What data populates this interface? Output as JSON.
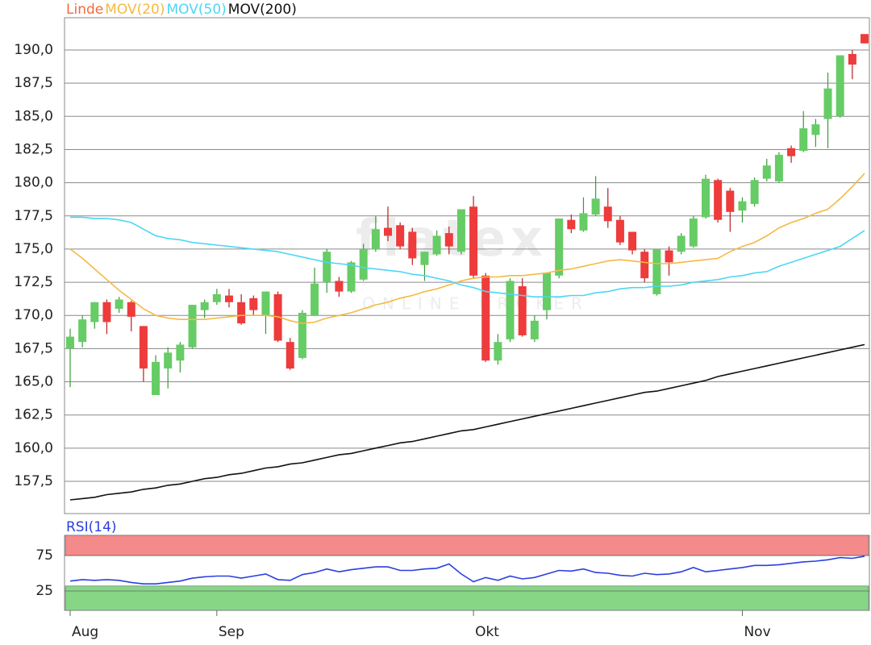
{
  "chart_data": [
    {
      "type": "candlestick",
      "watermark": {
        "logo": "flatex",
        "tagline": "ONLINE BROKER"
      },
      "categories": [
        "Aug",
        null,
        null,
        null,
        null,
        null,
        null,
        null,
        null,
        null,
        null,
        null,
        "Sep",
        null,
        null,
        null,
        null,
        null,
        null,
        null,
        null,
        null,
        null,
        null,
        null,
        null,
        null,
        null,
        null,
        null,
        null,
        null,
        null,
        "Okt",
        null,
        null,
        null,
        null,
        null,
        null,
        null,
        null,
        null,
        null,
        null,
        null,
        null,
        null,
        null,
        null,
        null,
        null,
        null,
        null,
        null,
        "Nov",
        null,
        null,
        null,
        null,
        null,
        null,
        null,
        null,
        null,
        null
      ],
      "ylim": [
        155.07,
        192.43
      ],
      "yticks": [
        {
          "value": 157.5,
          "label": "157,5"
        },
        {
          "value": 160,
          "label": "160,0"
        },
        {
          "value": 162.5,
          "label": "162,5"
        },
        {
          "value": 165,
          "label": "165,0"
        },
        {
          "value": 167.5,
          "label": "167,5"
        },
        {
          "value": 170,
          "label": "170,0"
        },
        {
          "value": 172.5,
          "label": "172,5"
        },
        {
          "value": 175,
          "label": "175,0"
        },
        {
          "value": 177.5,
          "label": "177,5"
        },
        {
          "value": 180,
          "label": "180,0"
        },
        {
          "value": 182.5,
          "label": "182,5"
        },
        {
          "value": 185,
          "label": "185,0"
        },
        {
          "value": 187.5,
          "label": "187,5"
        },
        {
          "value": 190,
          "label": "190,0"
        }
      ],
      "grid": true,
      "series": [
        {
          "name": "Linde",
          "color": "#f26b3a",
          "up_color": "#66cc66",
          "down_color": "#ee3b3b",
          "open": [
            167.5,
            168,
            169.5,
            171,
            170.5,
            171,
            169.2,
            164,
            166,
            166.6,
            167.6,
            170.4,
            171,
            171.5,
            171,
            171.3,
            170,
            171.6,
            168,
            166.8,
            170,
            172.5,
            172.6,
            171.8,
            172.7,
            175,
            176.6,
            176.8,
            176.3,
            173.8,
            174.6,
            176.2,
            174.8,
            178.2,
            173,
            166.6,
            168.2,
            172.2,
            168.2,
            170.4,
            173,
            177.2,
            176.4,
            177.6,
            178.2,
            177.2,
            176.3,
            174.8,
            171.6,
            174.9,
            174.8,
            175.2,
            177.4,
            180.2,
            179.4,
            177.9,
            178.4,
            180.3,
            180.1,
            182.6,
            182.4,
            183.6,
            184.8,
            185,
            189.7,
            191.2
          ],
          "high": [
            169,
            170,
            171,
            171.2,
            171.4,
            171.1,
            169.2,
            167,
            167.6,
            168,
            170.8,
            171.2,
            172,
            172,
            171.6,
            171.5,
            171.8,
            171.8,
            168.3,
            170.4,
            173.6,
            175,
            172.9,
            174.1,
            175.4,
            177.5,
            178.2,
            177,
            176.6,
            174.8,
            176.4,
            176.7,
            178,
            179,
            173.2,
            168.6,
            172.8,
            172.8,
            170,
            173.2,
            177.3,
            177.6,
            178.9,
            180.5,
            179.6,
            177.5,
            176.3,
            175,
            175,
            175.2,
            176.2,
            177.5,
            180.6,
            180.3,
            179.6,
            178.9,
            180.4,
            181.8,
            182.3,
            182.8,
            185.4,
            184.8,
            188.3,
            189.6,
            190,
            191.2
          ],
          "low": [
            164.6,
            167.6,
            169,
            168.6,
            170.2,
            168.8,
            165,
            164,
            164.5,
            165.7,
            167.5,
            169.8,
            170.8,
            170.6,
            169.3,
            170,
            168.6,
            168,
            165.9,
            166.7,
            170,
            171.7,
            171.4,
            171.7,
            172.6,
            174.8,
            175.6,
            175,
            173.8,
            172.6,
            174.5,
            174.6,
            174.6,
            172.8,
            166.5,
            166.3,
            168,
            168.4,
            168,
            169.7,
            172.8,
            176.2,
            176.3,
            177.5,
            176.6,
            175.3,
            174.6,
            172.5,
            171.5,
            173,
            174.6,
            175.1,
            177.3,
            177,
            176.3,
            177,
            178.2,
            180.1,
            180,
            181.5,
            182.3,
            182.7,
            182.6,
            184.9,
            187.8,
            190.5
          ],
          "close": [
            168.4,
            169.7,
            171,
            169.5,
            171.2,
            169.9,
            166,
            166.5,
            167.2,
            167.8,
            170.8,
            171,
            171.6,
            171,
            169.4,
            170.4,
            171.8,
            168.1,
            166,
            170.2,
            172.4,
            174.8,
            171.8,
            174,
            175,
            176.5,
            176,
            175.2,
            174.3,
            174.8,
            176,
            175.2,
            178,
            173,
            166.6,
            168,
            172.6,
            168.5,
            169.6,
            173.2,
            177.3,
            176.5,
            177.7,
            178.8,
            177.1,
            175.5,
            174.9,
            172.8,
            175,
            174,
            176,
            177.3,
            180.3,
            177.2,
            177.8,
            178.6,
            180.2,
            181.3,
            182.1,
            182,
            184.1,
            184.4,
            187.1,
            189.6,
            188.9,
            190.5
          ]
        },
        {
          "name": "MOV(20)",
          "color": "#f5b942",
          "values": [
            175.0,
            174.3,
            173.5,
            172.7,
            171.9,
            171.2,
            170.5,
            170.0,
            169.8,
            169.7,
            169.7,
            169.7,
            169.8,
            169.9,
            170.0,
            170.0,
            170.0,
            169.9,
            169.6,
            169.4,
            169.5,
            169.8,
            170.0,
            170.2,
            170.5,
            170.8,
            171.0,
            171.3,
            171.5,
            171.8,
            172.0,
            172.3,
            172.6,
            172.8,
            172.9,
            172.9,
            173.0,
            173.0,
            173.1,
            173.2,
            173.4,
            173.5,
            173.7,
            173.9,
            174.1,
            174.2,
            174.1,
            174.0,
            173.9,
            173.9,
            174.0,
            174.1,
            174.2,
            174.3,
            174.8,
            175.2,
            175.5,
            176.0,
            176.6,
            177.0,
            177.3,
            177.7,
            178.0,
            178.8,
            179.7,
            180.7
          ]
        },
        {
          "name": "MOV(50)",
          "color": "#4dd6f5",
          "values": [
            177.4,
            177.4,
            177.3,
            177.3,
            177.2,
            177.0,
            176.5,
            176.0,
            175.8,
            175.7,
            175.5,
            175.4,
            175.3,
            175.2,
            175.1,
            175.0,
            174.9,
            174.8,
            174.6,
            174.4,
            174.2,
            174.0,
            173.9,
            173.8,
            173.6,
            173.5,
            173.4,
            173.3,
            173.1,
            173.0,
            172.8,
            172.6,
            172.3,
            172.1,
            171.8,
            171.7,
            171.6,
            171.5,
            171.4,
            171.4,
            171.4,
            171.5,
            171.5,
            171.7,
            171.8,
            172.0,
            172.1,
            172.1,
            172.2,
            172.2,
            172.3,
            172.5,
            172.6,
            172.7,
            172.9,
            173.0,
            173.2,
            173.3,
            173.7,
            174.0,
            174.3,
            174.6,
            174.9,
            175.2,
            175.8,
            176.4
          ]
        },
        {
          "name": "MOV(200)",
          "color": "#111111",
          "values": [
            156.1,
            156.2,
            156.3,
            156.5,
            156.6,
            156.7,
            156.9,
            157.0,
            157.2,
            157.3,
            157.5,
            157.7,
            157.8,
            158.0,
            158.1,
            158.3,
            158.5,
            158.6,
            158.8,
            158.9,
            159.1,
            159.3,
            159.5,
            159.6,
            159.8,
            160.0,
            160.2,
            160.4,
            160.5,
            160.7,
            160.9,
            161.1,
            161.3,
            161.4,
            161.6,
            161.8,
            162.0,
            162.2,
            162.4,
            162.6,
            162.8,
            163.0,
            163.2,
            163.4,
            163.6,
            163.8,
            164.0,
            164.2,
            164.3,
            164.5,
            164.7,
            164.9,
            165.1,
            165.4,
            165.6,
            165.8,
            166.0,
            166.2,
            166.4,
            166.6,
            166.8,
            167.0,
            167.2,
            167.4,
            167.6,
            167.8
          ]
        }
      ]
    },
    {
      "type": "line",
      "ylim": [
        -2.3,
        103.4
      ],
      "yticks": [
        25,
        75
      ],
      "grid": true,
      "zones": [
        {
          "from": 75,
          "to": 103.4,
          "color": "#f58a8a"
        },
        {
          "from": -2.3,
          "to": 32,
          "color": "#86d686"
        }
      ],
      "series": [
        {
          "name": "RSI(14)",
          "color": "#2a3fe0",
          "values": [
            39,
            41,
            40,
            41,
            40,
            37,
            35,
            35,
            37,
            39,
            43,
            45,
            46,
            46,
            43,
            46,
            49,
            41,
            40,
            48,
            51,
            56,
            52,
            55,
            57,
            59,
            59,
            54,
            54,
            56,
            57,
            63,
            49,
            38,
            44,
            40,
            46,
            42,
            44,
            49,
            54,
            53,
            56,
            51,
            50,
            47,
            46,
            50,
            48,
            49,
            52,
            58,
            52,
            54,
            56,
            58,
            61,
            61,
            62,
            64,
            66,
            67,
            69,
            72,
            71,
            74
          ]
        }
      ]
    }
  ]
}
